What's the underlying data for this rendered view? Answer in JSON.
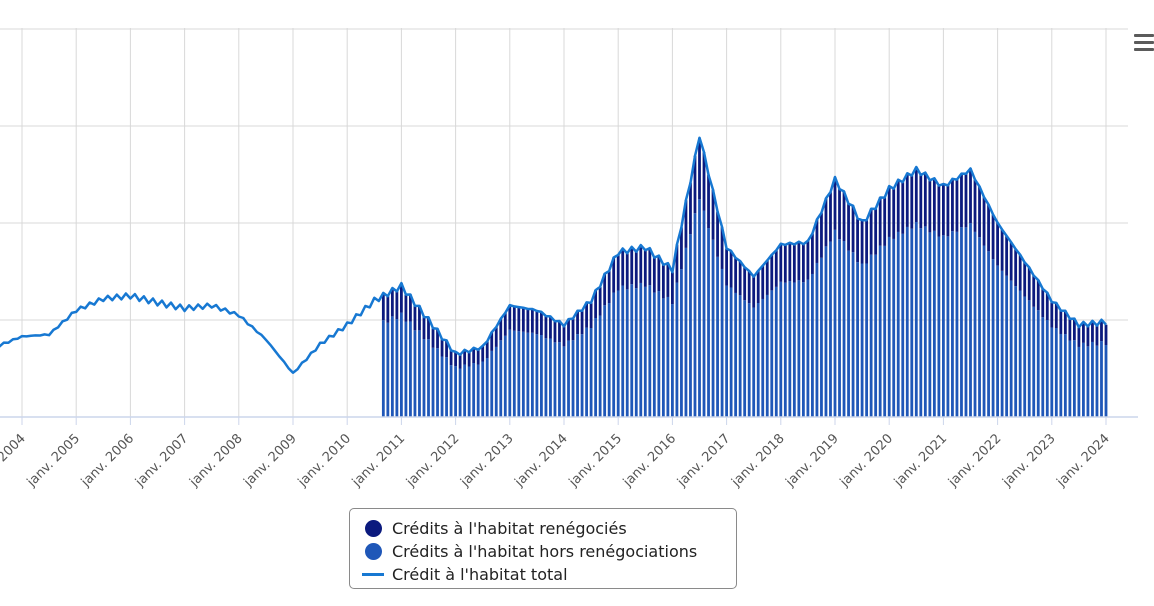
{
  "chart_data": {
    "type": "bar+line",
    "title": "",
    "xlabel": "",
    "ylabel": "",
    "x_tick_labels": [
      "janv. 2004",
      "janv. 2005",
      "janv. 2006",
      "janv. 2007",
      "janv. 2008",
      "janv. 2009",
      "janv. 2010",
      "janv. 2011",
      "janv. 2012",
      "janv. 2013",
      "janv. 2014",
      "janv. 2015",
      "janv. 2016",
      "janv. 2017",
      "janv. 2018",
      "janv. 2019",
      "janv. 2020",
      "janv. 2021",
      "janv. 2022",
      "janv. 2023",
      "janv. 2024"
    ],
    "y_gridlines_relative": [
      0,
      1,
      2,
      3,
      4
    ],
    "legend_position": "bottom-center",
    "series": [
      {
        "name": "Crédits à l'habitat renégociés",
        "kind": "stacked-bar",
        "color": "#0b1a7e"
      },
      {
        "name": "Crédits à l'habitat hors renégociations",
        "kind": "stacked-bar",
        "color": "#1f57b8"
      },
      {
        "name": "Crédit à l'habitat total",
        "kind": "line",
        "color": "#1778d2"
      }
    ],
    "data_note": "y values in relative grid units (0 = baseline, 1 = first gridline); axis has no printed tick values",
    "total_by_year": [
      {
        "x": "2003-07",
        "y": 0.72
      },
      {
        "x": "2004-01",
        "y": 0.83
      },
      {
        "x": "2004-07",
        "y": 0.85
      },
      {
        "x": "2005-01",
        "y": 1.1
      },
      {
        "x": "2005-07",
        "y": 1.22
      },
      {
        "x": "2006-01",
        "y": 1.25
      },
      {
        "x": "2006-07",
        "y": 1.18
      },
      {
        "x": "2007-01",
        "y": 1.12
      },
      {
        "x": "2007-07",
        "y": 1.15
      },
      {
        "x": "2008-01",
        "y": 1.05
      },
      {
        "x": "2008-07",
        "y": 0.8
      },
      {
        "x": "2009-01",
        "y": 0.45
      },
      {
        "x": "2009-07",
        "y": 0.75
      },
      {
        "x": "2010-01",
        "y": 0.95
      },
      {
        "x": "2010-07",
        "y": 1.2
      },
      {
        "x": "2011-01",
        "y": 1.35
      },
      {
        "x": "2011-07",
        "y": 1.0
      },
      {
        "x": "2012-01",
        "y": 0.65
      },
      {
        "x": "2012-07",
        "y": 0.72
      },
      {
        "x": "2013-01",
        "y": 1.15
      },
      {
        "x": "2013-07",
        "y": 1.1
      },
      {
        "x": "2014-01",
        "y": 0.95
      },
      {
        "x": "2014-07",
        "y": 1.2
      },
      {
        "x": "2015-01",
        "y": 1.7
      },
      {
        "x": "2015-07",
        "y": 1.75
      },
      {
        "x": "2016-01",
        "y": 1.52
      },
      {
        "x": "2016-07",
        "y": 2.9
      },
      {
        "x": "2017-01",
        "y": 1.75
      },
      {
        "x": "2017-07",
        "y": 1.45
      },
      {
        "x": "2018-01",
        "y": 1.78
      },
      {
        "x": "2018-07",
        "y": 1.8
      },
      {
        "x": "2019-01",
        "y": 2.45
      },
      {
        "x": "2019-07",
        "y": 2.0
      },
      {
        "x": "2020-01",
        "y": 2.35
      },
      {
        "x": "2020-07",
        "y": 2.55
      },
      {
        "x": "2021-01",
        "y": 2.38
      },
      {
        "x": "2021-07",
        "y": 2.55
      },
      {
        "x": "2022-01",
        "y": 2.0
      },
      {
        "x": "2022-07",
        "y": 1.6
      },
      {
        "x": "2023-01",
        "y": 1.2
      },
      {
        "x": "2023-07",
        "y": 0.95
      },
      {
        "x": "2024-01",
        "y": 0.98
      }
    ],
    "bar_start": "2010-09"
  },
  "legend": {
    "renegocies_label": "Crédits à l'habitat renégociés",
    "hors_label": "Crédits à l'habitat hors renégociations",
    "total_label": "Crédit à l'habitat total"
  },
  "colors": {
    "renegocies": "#0b1a7e",
    "hors": "#1f57b8",
    "total": "#1778d2",
    "grid": "#d8d8d8",
    "axis": "#ccd6eb",
    "label": "#555555"
  },
  "icons": {
    "menu": "hamburger-menu-icon"
  }
}
